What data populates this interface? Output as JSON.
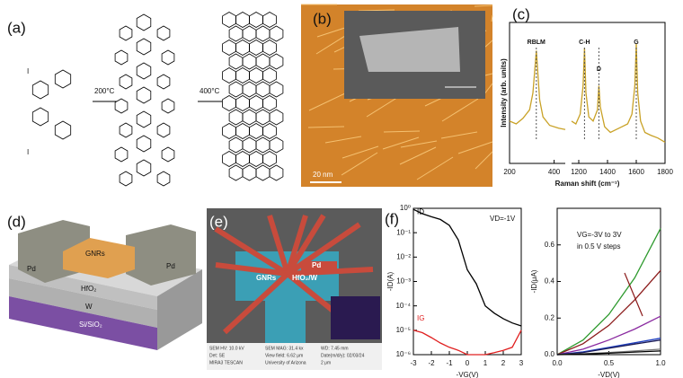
{
  "figure": {
    "a": {
      "label": "(a)",
      "temps": [
        "200°C",
        "400°C"
      ],
      "atoms": [
        "I",
        "I"
      ]
    },
    "b": {
      "label": "(b)",
      "scale": "20 nm"
    },
    "d": {
      "label": "(d)",
      "texts": [
        "GNRs",
        "Pd",
        "Pd",
        "HfO₂",
        "W",
        "Si/SiO₂"
      ]
    },
    "e": {
      "label": "(e)",
      "texts": [
        "Pd",
        "GNRs",
        "HfO₂/W"
      ],
      "footer": [
        "SEM HV: 10.0 kV",
        "SEM MAG: 31.4 kx",
        "WD: 7.45 mm",
        "Det: SE",
        "View field: 6.62 μm",
        "Date(m/d/y): 02/03/24",
        "MIRA3 TESCAN",
        "University of Arizona",
        "2 μm"
      ]
    },
    "f": {
      "label": "(f)"
    }
  },
  "chart_data": [
    {
      "type": "line",
      "label": "(c)",
      "xlabel": "Raman shift (cm⁻¹)",
      "ylabel": "Intensity (arb. units)",
      "x": [
        200,
        230,
        260,
        290,
        305,
        320,
        335,
        350,
        380,
        420,
        450,
        800,
        1150,
        1180,
        1210,
        1230,
        1240,
        1250,
        1270,
        1300,
        1330,
        1340,
        1350,
        1380,
        1420,
        1460,
        1500,
        1540,
        1570,
        1590,
        1600,
        1610,
        1630,
        1660,
        1700,
        1750,
        1800
      ],
      "series": [
        {
          "color": "#c9a227",
          "values": [
            0.3,
            0.28,
            0.32,
            0.38,
            0.5,
            0.8,
            0.45,
            0.33,
            0.27,
            0.25,
            0.24,
            null,
            0.3,
            0.28,
            0.35,
            0.55,
            0.82,
            0.5,
            0.33,
            0.3,
            0.38,
            0.55,
            0.4,
            0.26,
            0.22,
            0.24,
            0.26,
            0.28,
            0.35,
            0.55,
            0.85,
            0.5,
            0.3,
            0.22,
            0.2,
            0.18,
            0.15
          ]
        }
      ],
      "xlim": [
        200,
        1800
      ],
      "xbreak": [
        450,
        1150
      ],
      "xticks": [
        200,
        400,
        1200,
        1400,
        1600,
        1800
      ],
      "ylim": [
        0,
        1
      ],
      "annotations": [
        {
          "text": "RBLM",
          "x": 320
        },
        {
          "text": "C-H",
          "x": 1240
        },
        {
          "text": "D",
          "x": 1340
        },
        {
          "text": "G",
          "x": 1600
        }
      ]
    },
    {
      "type": "line",
      "ylog": true,
      "xlabel": "-VG(V)",
      "ylabel": "-ID(A)",
      "x": [
        -3,
        -2.5,
        -2,
        -1.5,
        -1,
        -0.5,
        0,
        0.5,
        1,
        1.5,
        2,
        2.5,
        3
      ],
      "series": [
        {
          "name": "ID",
          "color": "#000000",
          "values": [
            0.9,
            0.6,
            0.45,
            0.35,
            0.2,
            0.05,
            0.003,
            0.0008,
            0.0001,
            5e-05,
            3e-05,
            2e-05,
            1.5e-05
          ]
        },
        {
          "name": "IG",
          "color": "#e02020",
          "values": [
            1e-05,
            8e-06,
            5e-06,
            3e-06,
            2e-06,
            1.5e-06,
            1e-06,
            1e-06,
            1e-06,
            1.2e-06,
            1.5e-06,
            2e-06,
            1e-05
          ]
        }
      ],
      "xlim": [
        -3,
        3
      ],
      "xticks": [
        -3,
        -2,
        -1,
        0,
        1,
        2,
        3
      ],
      "ylim": [
        1e-06,
        1
      ],
      "yticks": [
        {
          "value": 1,
          "label": "10⁰"
        },
        {
          "value": 0.1,
          "label": "10⁻¹"
        },
        {
          "value": 0.01,
          "label": "10⁻²"
        },
        {
          "value": 0.001,
          "label": "10⁻³"
        },
        {
          "value": 0.0001,
          "label": "10⁻⁴"
        },
        {
          "value": 1e-05,
          "label": "10⁻⁵"
        },
        {
          "value": 1e-06,
          "label": "10⁻⁶"
        }
      ],
      "annotations": [
        {
          "text": "VD=-1V"
        }
      ]
    },
    {
      "type": "line",
      "xlabel": "-VD(V)",
      "ylabel": "-ID(μA)",
      "x": [
        0,
        0.25,
        0.5,
        0.75,
        1.0
      ],
      "series": [
        {
          "color": "#2e9a2e",
          "values": [
            0,
            0.08,
            0.22,
            0.42,
            0.69
          ]
        },
        {
          "color": "#8b1a1a",
          "values": [
            0,
            0.06,
            0.16,
            0.3,
            0.46
          ]
        },
        {
          "color": "#8a2aa0",
          "values": [
            0,
            0.03,
            0.08,
            0.14,
            0.21
          ]
        },
        {
          "color": "#1f3fbf",
          "values": [
            0,
            0.015,
            0.04,
            0.065,
            0.09
          ]
        },
        {
          "color": "#1a1a55",
          "values": [
            0,
            0.012,
            0.035,
            0.058,
            0.08
          ]
        },
        {
          "color": "#777777",
          "values": [
            0,
            0.005,
            0.012,
            0.02,
            0.03
          ]
        },
        {
          "color": "#000000",
          "values": [
            0,
            0.003,
            0.008,
            0.014,
            0.02
          ]
        }
      ],
      "xlim": [
        0,
        1.0
      ],
      "xticks": [
        {
          "value": 0,
          "label": "0.0"
        },
        0.5,
        {
          "value": 1.0,
          "label": "1.0"
        }
      ],
      "ylim": [
        0,
        0.8
      ],
      "yticks": [
        {
          "value": 0,
          "label": "0.0"
        },
        0.2,
        0.4,
        0.6
      ],
      "annotations": [
        {
          "text": "VG=-3V to 3V"
        },
        {
          "text": "in 0.5 V steps"
        }
      ]
    }
  ]
}
